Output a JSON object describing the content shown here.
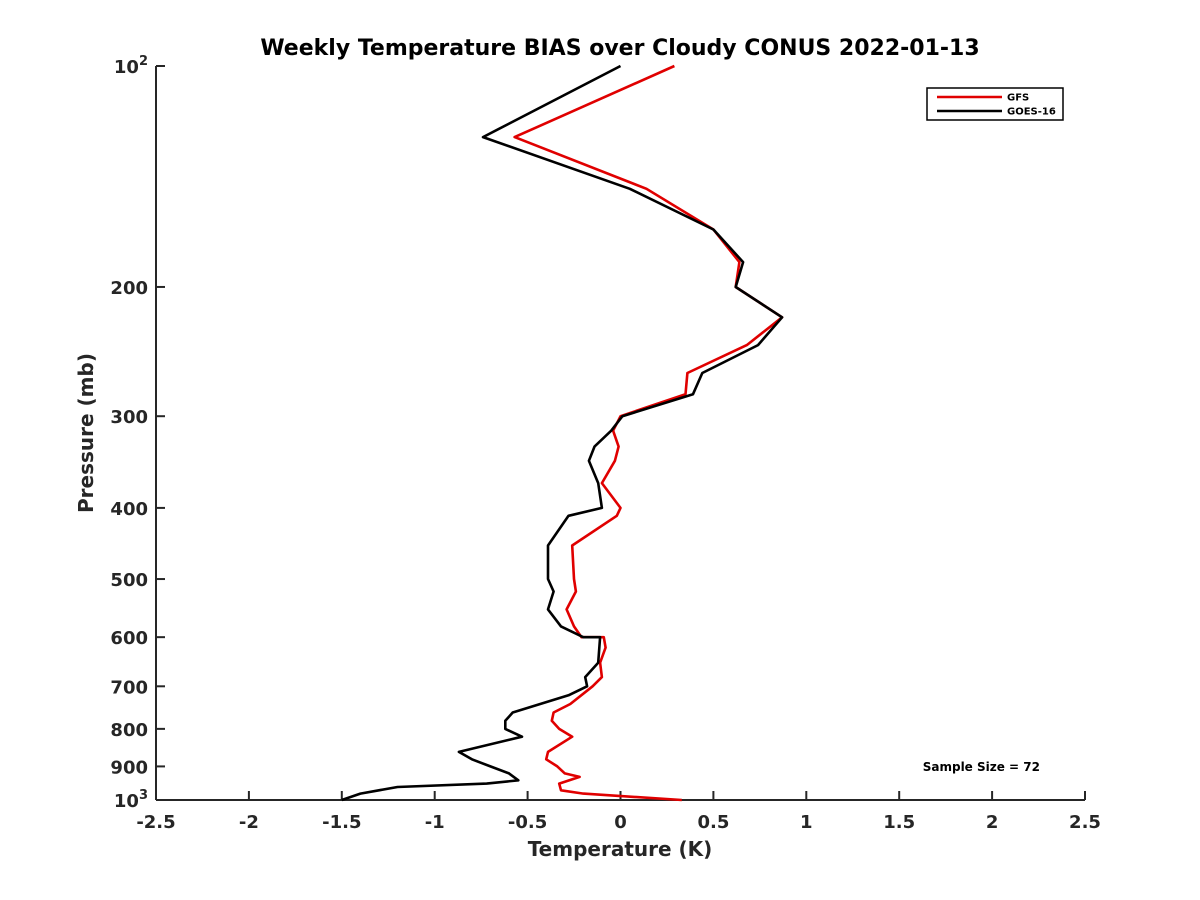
{
  "chart_data": {
    "type": "line",
    "title": "Weekly Temperature BIAS over Cloudy CONUS 2022-01-13",
    "xlabel": "Temperature (K)",
    "ylabel": "Pressure (mb)",
    "xlim": [
      -2.5,
      2.5
    ],
    "ylim": [
      100,
      1000
    ],
    "y_scale": "log",
    "y_reversed": true,
    "grid": false,
    "legend_position": "top-right",
    "x_ticks": [
      -2.5,
      -2,
      -1.5,
      -1,
      -0.5,
      0,
      0.5,
      1,
      1.5,
      2,
      2.5
    ],
    "x_tick_labels": [
      "-2.5",
      "-2",
      "-1.5",
      "-1",
      "-0.5",
      "0",
      "0.5",
      "1",
      "1.5",
      "2",
      "2.5"
    ],
    "y_ticks": [
      100,
      200,
      300,
      400,
      500,
      600,
      700,
      800,
      900,
      1000
    ],
    "y_tick_labels": [
      {
        "base": "10",
        "exp": "2"
      },
      {
        "base": "200",
        "exp": ""
      },
      {
        "base": "300",
        "exp": ""
      },
      {
        "base": "400",
        "exp": ""
      },
      {
        "base": "500",
        "exp": ""
      },
      {
        "base": "600",
        "exp": ""
      },
      {
        "base": "700",
        "exp": ""
      },
      {
        "base": "800",
        "exp": ""
      },
      {
        "base": "900",
        "exp": ""
      },
      {
        "base": "10",
        "exp": "3"
      }
    ],
    "annotation": "Sample Size = 72",
    "series": [
      {
        "name": "GFS",
        "color": "#e00000",
        "x": [
          0.29,
          -0.57,
          0.14,
          0.5,
          0.64,
          0.62,
          0.87,
          0.68,
          0.36,
          0.35,
          0.0,
          -0.04,
          -0.01,
          -0.03,
          -0.1,
          0.0,
          -0.02,
          -0.26,
          -0.25,
          -0.24,
          -0.29,
          -0.25,
          -0.21,
          -0.09,
          -0.08,
          -0.11,
          -0.1,
          -0.15,
          -0.27,
          -0.36,
          -0.37,
          -0.33,
          -0.26,
          -0.39,
          -0.4,
          -0.34,
          -0.3,
          -0.22,
          -0.33,
          -0.32,
          -0.2,
          0.33
        ],
        "y": [
          100,
          125,
          147,
          167,
          185,
          200,
          220,
          240,
          262,
          280,
          300,
          314,
          330,
          345,
          370,
          400,
          410,
          450,
          500,
          520,
          550,
          580,
          600,
          600,
          620,
          650,
          680,
          700,
          740,
          760,
          780,
          800,
          820,
          860,
          880,
          900,
          920,
          930,
          950,
          970,
          980,
          1000
        ]
      },
      {
        "name": "GOES-16",
        "color": "#000000",
        "x": [
          0.0,
          -0.74,
          0.05,
          0.5,
          0.66,
          0.62,
          0.87,
          0.74,
          0.44,
          0.39,
          0.01,
          -0.05,
          -0.14,
          -0.17,
          -0.12,
          -0.1,
          -0.28,
          -0.39,
          -0.39,
          -0.36,
          -0.39,
          -0.32,
          -0.2,
          -0.11,
          -0.12,
          -0.19,
          -0.18,
          -0.28,
          -0.58,
          -0.62,
          -0.62,
          -0.53,
          -0.87,
          -0.8,
          -0.7,
          -0.6,
          -0.55,
          -0.72,
          -1.2,
          -1.4,
          -1.5
        ],
        "y": [
          100,
          125,
          147,
          167,
          185,
          200,
          220,
          240,
          262,
          280,
          300,
          314,
          330,
          345,
          370,
          400,
          410,
          450,
          500,
          520,
          550,
          580,
          600,
          600,
          650,
          680,
          700,
          720,
          760,
          780,
          800,
          820,
          860,
          880,
          900,
          920,
          940,
          950,
          960,
          980,
          1000
        ]
      }
    ]
  }
}
